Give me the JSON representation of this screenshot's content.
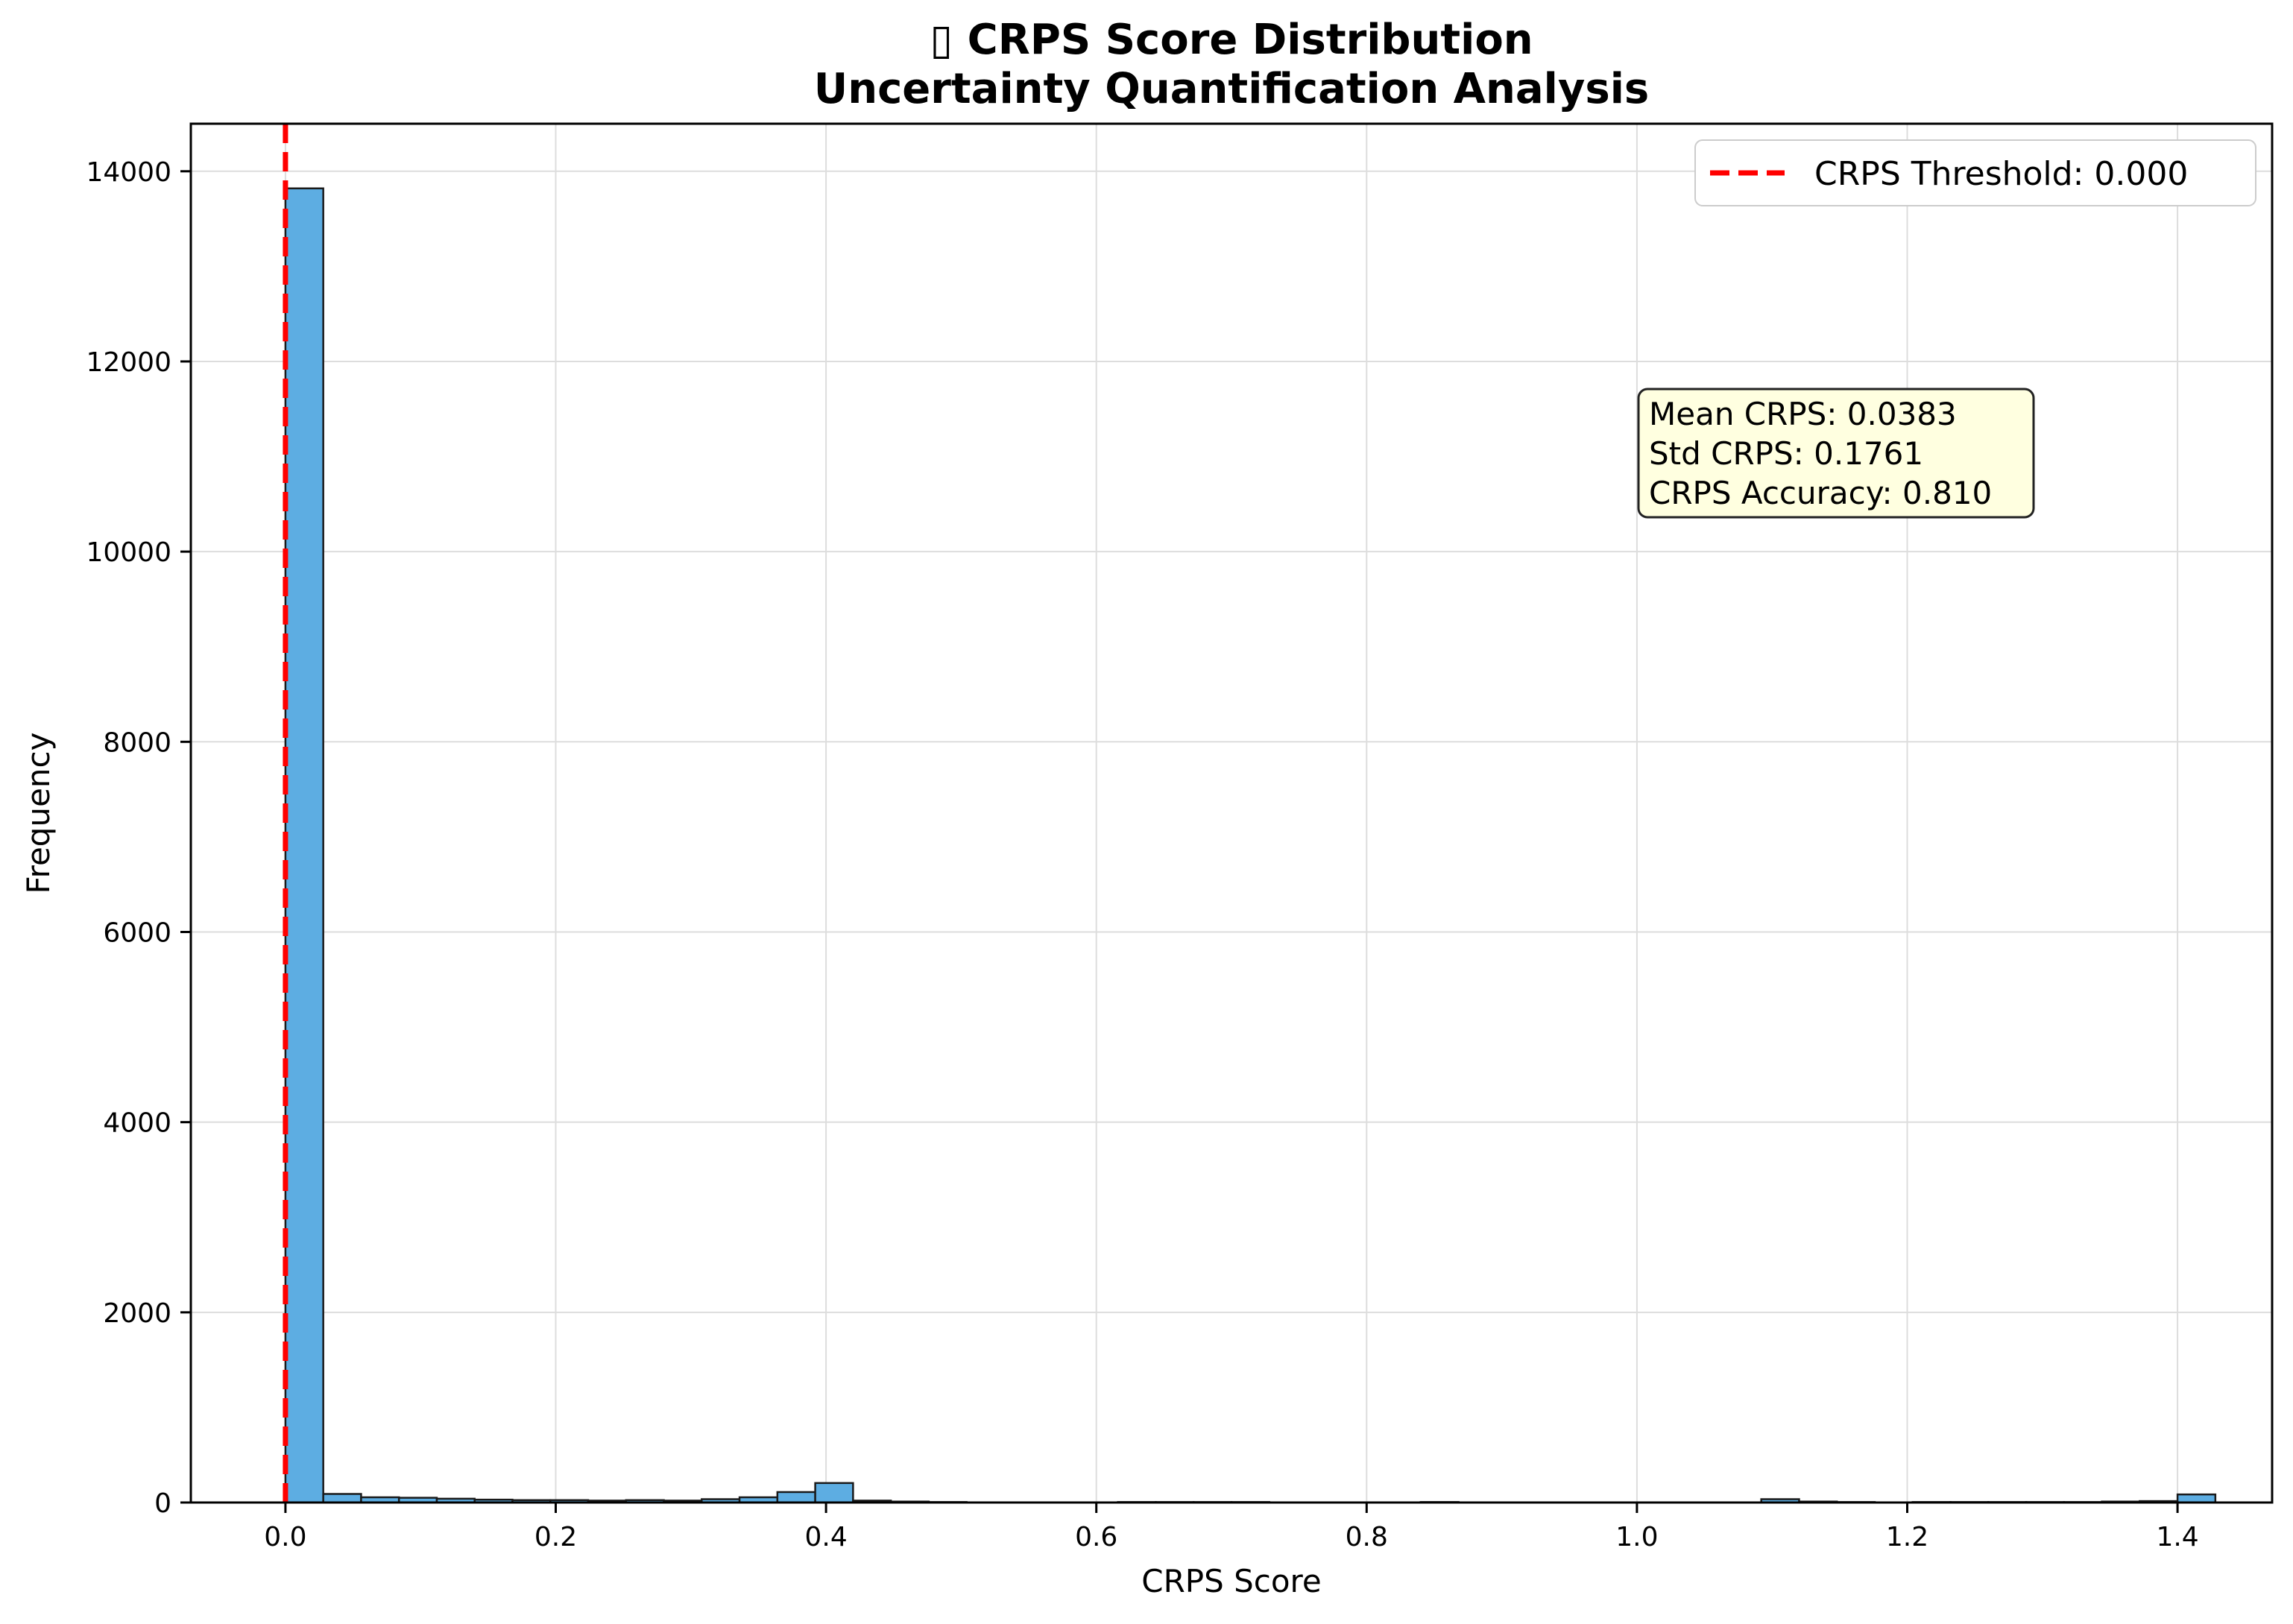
{
  "colors": {
    "bar_fill": "#5DADE2",
    "bar_edge": "#1a1a1a",
    "threshold_line": "#ff0000",
    "grid": "#dddddd",
    "annotation_bg": "#ffffe0"
  },
  "chart_data": {
    "type": "bar",
    "title_line1": "▯ CRPS Score Distribution",
    "title_line2": "Uncertainty Quantification Analysis",
    "xlabel": "CRPS Score",
    "ylabel": "Frequency",
    "xlim": [
      -0.07,
      1.47
    ],
    "ylim": [
      0,
      14500
    ],
    "grid": true,
    "x_ticks": [
      0.0,
      0.2,
      0.4,
      0.6,
      0.8,
      1.0,
      1.2,
      1.4
    ],
    "x_tick_labels": [
      "0.0",
      "0.2",
      "0.4",
      "0.6",
      "0.8",
      "1.0",
      "1.2",
      "1.4"
    ],
    "y_ticks": [
      0,
      2000,
      4000,
      6000,
      8000,
      10000,
      12000,
      14000
    ],
    "y_tick_labels": [
      "0",
      "2000",
      "4000",
      "6000",
      "8000",
      "10000",
      "12000",
      "14000"
    ],
    "bin_start": 0.0,
    "bin_width": 0.028,
    "values": [
      13820,
      90,
      55,
      50,
      40,
      30,
      25,
      25,
      20,
      25,
      20,
      35,
      55,
      110,
      205,
      20,
      10,
      5,
      0,
      0,
      0,
      0,
      5,
      5,
      5,
      5,
      0,
      0,
      0,
      0,
      5,
      0,
      0,
      0,
      0,
      0,
      0,
      0,
      0,
      35,
      10,
      5,
      0,
      5,
      5,
      5,
      5,
      5,
      10,
      15,
      85
    ],
    "threshold": 0.0,
    "legend": {
      "label": "CRPS Threshold: 0.000",
      "position": "top-right"
    },
    "annotation": {
      "lines": [
        "Mean CRPS: 0.0383",
        "Std CRPS: 0.1761",
        "CRPS Accuracy: 0.810"
      ]
    }
  }
}
